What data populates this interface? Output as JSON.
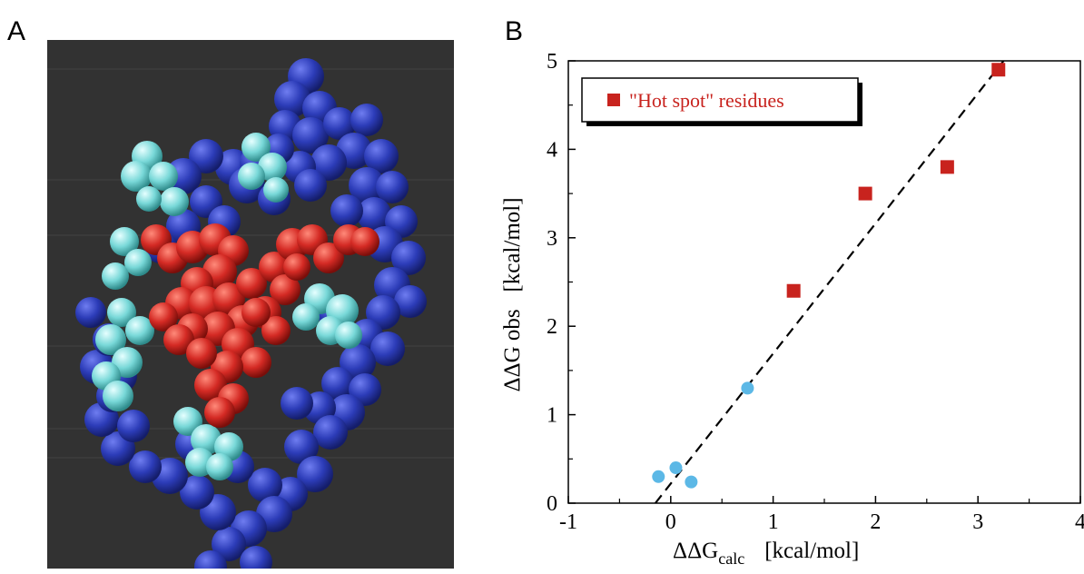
{
  "panels": {
    "a_label": "A",
    "b_label": "B"
  },
  "colors": {
    "background_panel": "#323232",
    "protein_backbone": "#2a3ab5",
    "contact_residues": "#72d6d6",
    "hot_spot": "#d42a24",
    "hot_spot_marker": "#c8231e",
    "other_marker": "#5cb8e6"
  },
  "chart_data": {
    "type": "scatter",
    "xlabel": "ΔΔG",
    "xlabel_subscript": "calc",
    "xlabel_units": "[kcal/mol]",
    "ylabel": "ΔΔG obs   [kcal/mol]",
    "xlim": [
      -1,
      4
    ],
    "ylim": [
      0,
      5
    ],
    "x_ticks": [
      -1,
      0,
      1,
      2,
      3,
      4
    ],
    "y_ticks": [
      0,
      1,
      2,
      3,
      4,
      5
    ],
    "grid": false,
    "legend_position": "top-left",
    "series": [
      {
        "name": "\"Hot spot\" residues",
        "marker": "square",
        "color": "#c8231e",
        "points": [
          {
            "x": 1.2,
            "y": 2.4
          },
          {
            "x": 1.9,
            "y": 3.5
          },
          {
            "x": 2.7,
            "y": 3.8
          },
          {
            "x": 3.2,
            "y": 4.9
          }
        ]
      },
      {
        "marker": "circle",
        "color": "#5cb8e6",
        "points": [
          {
            "x": -0.12,
            "y": 0.3
          },
          {
            "x": 0.05,
            "y": 0.4
          },
          {
            "x": 0.2,
            "y": 0.24
          },
          {
            "x": 0.75,
            "y": 1.3
          }
        ]
      }
    ],
    "fit_line": {
      "style": "dashed",
      "from": {
        "x": -0.15,
        "y": 0.0
      },
      "to": {
        "x": 3.25,
        "y": 5.0
      }
    }
  }
}
